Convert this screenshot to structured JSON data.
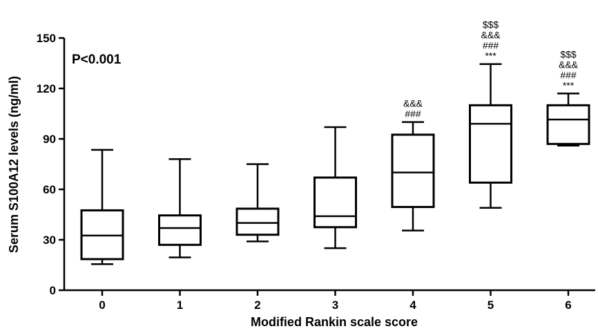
{
  "chart_data": {
    "type": "boxplot",
    "xlabel": "Modified Rankin scale score",
    "ylabel": "Serum S100A12 levels (ng/ml)",
    "ylim": [
      0,
      150
    ],
    "yticks": [
      0,
      30,
      60,
      90,
      120,
      150
    ],
    "categories": [
      "0",
      "1",
      "2",
      "3",
      "4",
      "5",
      "6"
    ],
    "boxes": [
      {
        "category": "0",
        "min": 15.5,
        "q1": 18.5,
        "median": 32.5,
        "q3": 47.5,
        "max": 83.5
      },
      {
        "category": "1",
        "min": 19.5,
        "q1": 27,
        "median": 37,
        "q3": 44.5,
        "max": 78
      },
      {
        "category": "2",
        "min": 29,
        "q1": 33,
        "median": 40,
        "q3": 48.5,
        "max": 75
      },
      {
        "category": "3",
        "min": 25,
        "q1": 37.5,
        "median": 44,
        "q3": 67,
        "max": 97
      },
      {
        "category": "4",
        "min": 35.5,
        "q1": 49.5,
        "median": 70,
        "q3": 92.5,
        "max": 100
      },
      {
        "category": "5",
        "min": 49,
        "q1": 64,
        "median": 99,
        "q3": 110,
        "max": 134.5
      },
      {
        "category": "6",
        "min": 86,
        "q1": 87,
        "median": 101.5,
        "q3": 110,
        "max": 117
      }
    ],
    "annotations": [
      {
        "category": "4",
        "lines": [
          "&&&",
          "###"
        ]
      },
      {
        "category": "5",
        "lines": [
          "$$$",
          "&&&",
          "###",
          "***"
        ]
      },
      {
        "category": "6",
        "lines": [
          "$$$",
          "&&&",
          "###",
          "***"
        ]
      }
    ],
    "p_value_text": "P<0.001",
    "grid": false,
    "legend": "none"
  }
}
